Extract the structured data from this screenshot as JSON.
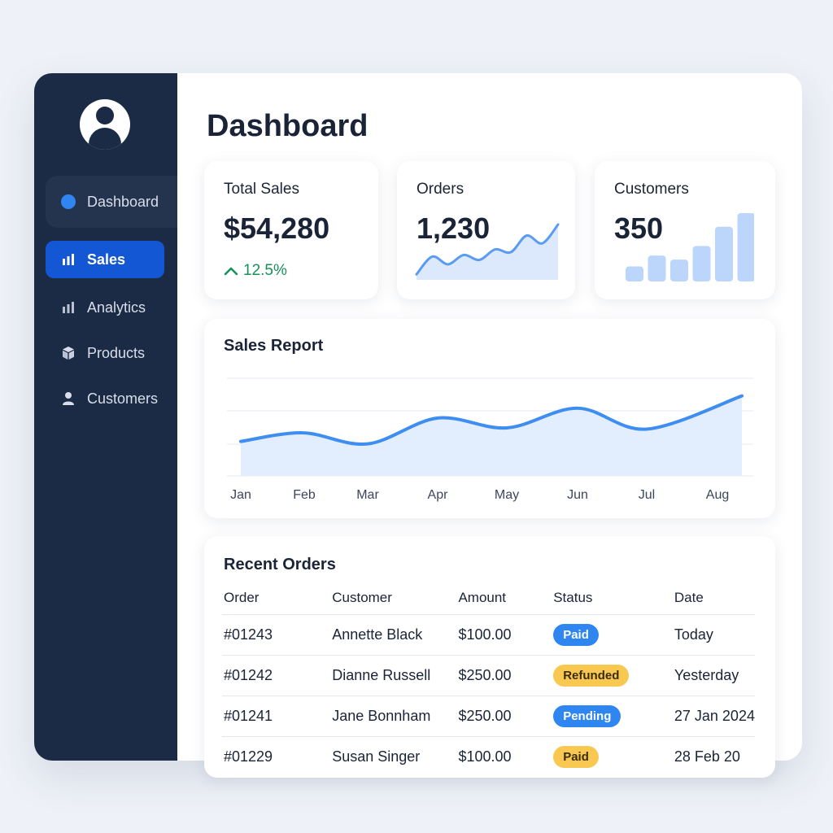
{
  "colors": {
    "sidebar_bg": "#1c2b45",
    "accent": "#1357d4",
    "chart_line": "#3d8ef0",
    "chart_fill": "#e2edfd",
    "positive": "#17905a",
    "badge_blue": "#2f86f0",
    "badge_yellow": "#f9c851"
  },
  "sidebar": {
    "avatar_icon": "user-avatar-icon",
    "items": [
      {
        "label": "Dashboard",
        "icon": "dot-icon",
        "state": "highlighted"
      },
      {
        "label": "Sales",
        "icon": "bar-chart-icon",
        "state": "active"
      },
      {
        "label": "Analytics",
        "icon": "bar-chart-icon",
        "state": "normal"
      },
      {
        "label": "Products",
        "icon": "box-icon",
        "state": "normal"
      },
      {
        "label": "Customers",
        "icon": "user-icon",
        "state": "normal"
      }
    ]
  },
  "header": {
    "title": "Dashboard"
  },
  "stats": {
    "total_sales": {
      "label": "Total Sales",
      "value": "$54,280",
      "change": "12.5%",
      "change_icon": "chevron-up-icon"
    },
    "orders": {
      "label": "Orders",
      "value": "1,230",
      "sparkline": [
        0.1,
        0.42,
        0.28,
        0.45,
        0.36,
        0.55,
        0.5,
        0.8,
        0.66,
        1.0
      ]
    },
    "customers": {
      "label": "Customers",
      "value": "350",
      "bars": [
        0.22,
        0.38,
        0.32,
        0.52,
        0.8,
        1.0
      ]
    }
  },
  "sales_report": {
    "title": "Sales Report"
  },
  "chart_data": {
    "type": "area",
    "title": "Sales Report",
    "categories": [
      "Jan",
      "Feb",
      "Mar",
      "Apr",
      "May",
      "Jun",
      "Jul",
      "Aug"
    ],
    "values": [
      48,
      55,
      46,
      67,
      59,
      75,
      58,
      85
    ],
    "ylim": [
      20,
      100
    ],
    "grid": true,
    "xlabel": "",
    "ylabel": ""
  },
  "orders_table": {
    "title": "Recent Orders",
    "columns": [
      "Order",
      "Customer",
      "Amount",
      "Status",
      "Date"
    ],
    "rows": [
      {
        "order": "#01243",
        "customer": "Annette Black",
        "amount": "$100.00",
        "status": "Paid",
        "status_color": "blue",
        "date": "Today"
      },
      {
        "order": "#01242",
        "customer": "Dianne Russell",
        "amount": "$250.00",
        "status": "Refunded",
        "status_color": "yellow",
        "date": "Yesterday"
      },
      {
        "order": "#01241",
        "customer": "Jane Bonnham",
        "amount": "$250.00",
        "status": "Pending",
        "status_color": "blue",
        "date": "27 Jan 2024"
      },
      {
        "order": "#01229",
        "customer": "Susan Singer",
        "amount": "$100.00",
        "status": "Paid",
        "status_color": "yellow",
        "date": "28 Feb 20"
      }
    ]
  }
}
